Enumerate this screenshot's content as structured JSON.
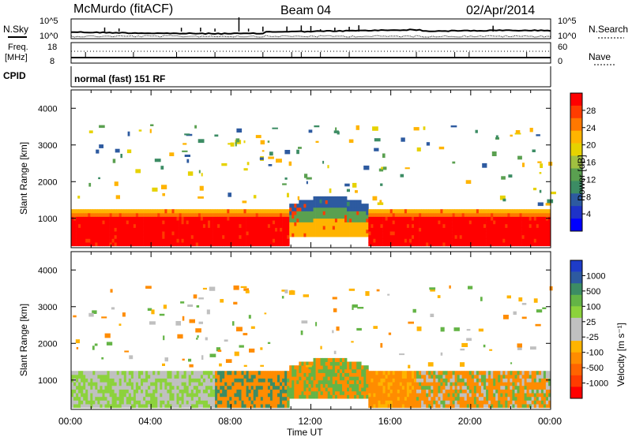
{
  "header": {
    "station": "McMurdo (fitACF)",
    "beam": "Beam 04",
    "date": "02/Apr/2014"
  },
  "top_panels": {
    "nsky_label": "N.Sky",
    "nsky_ticks": [
      "10^5",
      "10^0"
    ],
    "nsearch_label": "N.Search",
    "nsearch_ticks": [
      "10^5",
      "10^0"
    ],
    "freq_label": "Freq.",
    "freq_unit": "[MHz]",
    "freq_ticks": [
      "18",
      "8"
    ],
    "nave_label": "Nave",
    "nave_ticks": [
      "60",
      "0"
    ],
    "cpid_label": "CPID",
    "cpid_text": "normal (fast) 151 RF"
  },
  "chart_data": [
    {
      "type": "heatmap",
      "name": "power",
      "ylabel": "Slant Range [km]",
      "xlabel": "",
      "x_ticks": [
        "00:00",
        "04:00",
        "08:00",
        "12:00",
        "16:00",
        "20:00",
        "00:00"
      ],
      "y_ticks": [
        "1000",
        "2000",
        "3000",
        "4000"
      ],
      "ylim": [
        200,
        4500
      ],
      "colorbar": {
        "label": "Power [dB]",
        "ticks": [
          "28",
          "24",
          "20",
          "16",
          "12",
          "8",
          "4"
        ],
        "colors": [
          "#ff0000",
          "#ff3c00",
          "#ff7800",
          "#ffb400",
          "#e6d200",
          "#a0c040",
          "#5aa050",
          "#3c8c64",
          "#2d5aa0",
          "#1e32c8",
          "#0000ff"
        ]
      }
    },
    {
      "type": "heatmap",
      "name": "velocity",
      "ylabel": "Slant Range [km]",
      "xlabel": "Time UT",
      "x_ticks": [
        "00:00",
        "04:00",
        "08:00",
        "12:00",
        "16:00",
        "20:00",
        "00:00"
      ],
      "y_ticks": [
        "1000",
        "2000",
        "3000",
        "4000"
      ],
      "ylim": [
        200,
        4500
      ],
      "colorbar": {
        "label": "Velocity [m s⁻¹]",
        "ticks": [
          "1000",
          "500",
          "100",
          "25",
          "-25",
          "-100",
          "-500",
          "-1000"
        ],
        "colors": [
          "#1e3cc8",
          "#2d5aa0",
          "#3c8c64",
          "#64b446",
          "#8cd23c",
          "#c0c0c0",
          "#c0c0c0",
          "#ffb400",
          "#ff8c00",
          "#ff6400",
          "#ff3c00",
          "#ff0000"
        ]
      }
    }
  ]
}
